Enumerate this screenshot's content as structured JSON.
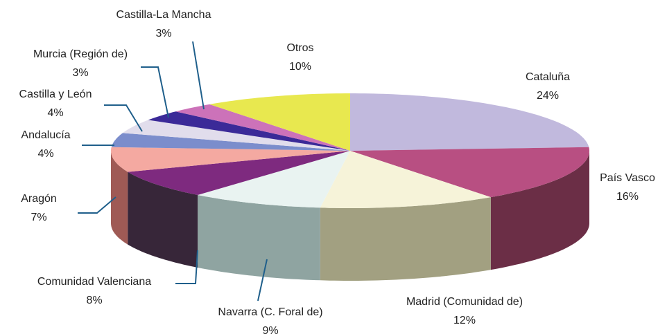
{
  "chart_data": {
    "type": "pie3d",
    "categories": [
      "Cataluña",
      "País Vasco",
      "Madrid (Comunidad de)",
      "Navarra (C. Foral de)",
      "Comunidad Valenciana",
      "Aragón",
      "Andalucía",
      "Castilla y León",
      "Murcia (Región de)",
      "Castilla-La Mancha",
      "Otros"
    ],
    "values": [
      24,
      16,
      12,
      9,
      8,
      7,
      4,
      4,
      3,
      3,
      10
    ],
    "value_labels": [
      "24%",
      "16%",
      "12%",
      "9%",
      "8%",
      "7%",
      "4%",
      "4%",
      "3%",
      "3%",
      "10%"
    ],
    "colors": [
      "#c1b9dd",
      "#b84f82",
      "#f6f3d9",
      "#e9f3f1",
      "#7e2a7f",
      "#f4a9a1",
      "#7b8dcc",
      "#e1ddec",
      "#3b2a98",
      "#cc72b9",
      "#e8e84f"
    ],
    "side_colors": [
      "#8a82a8",
      "#6b2e46",
      "#a2a081",
      "#8fa4a1",
      "#372639",
      "#9f5a55",
      "#4f5f99",
      "#a6a2b4",
      "#24196a",
      "#8f4f82",
      "#a8a82e"
    ]
  }
}
